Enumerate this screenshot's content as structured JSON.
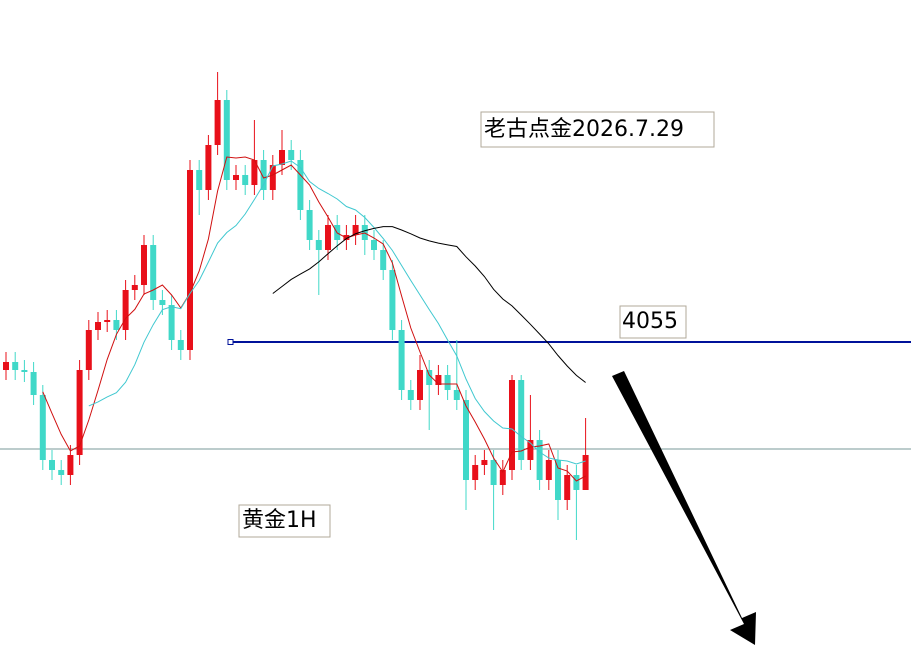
{
  "chart_data": {
    "type": "candlestick",
    "open": [
      4048,
      4050,
      4048,
      4047.5,
      4041.75,
      4025.5,
      4023,
      4021.75,
      4026.75,
      4048,
      4058,
      4060,
      4060.5,
      4058,
      4068,
      4069.25,
      4079.25,
      4065.5,
      4064.25,
      4055.5,
      4053,
      4098,
      4093,
      4104.25,
      4115.5,
      4095.5,
      4096.75,
      4094.25,
      4100.5,
      4093,
      4099.25,
      4103,
      4100.5,
      4088,
      4080.5,
      4078,
      4084.25,
      4080.5,
      4081.75,
      4084.25,
      4080.5,
      4078,
      4073,
      4058,
      4043,
      4040.5,
      4048,
      4044.25,
      4046.75,
      4043,
      4040.5,
      4020.5,
      4024.25,
      4025.5,
      4019.25,
      4023,
      4045.5,
      4025.5,
      4030.5,
      4020.5,
      4025.5,
      4015.5,
      4021.75,
      4018
    ],
    "high": [
      4052.5,
      4052.5,
      4050.5,
      4050,
      4044.25,
      4028,
      4025.5,
      4029.25,
      4050.5,
      4060.5,
      4062.5,
      4063,
      4063,
      4070.5,
      4071.75,
      4081.75,
      4081.75,
      4068,
      4066.75,
      4058,
      4100.5,
      4100.5,
      4106.75,
      4122.5,
      4118,
      4099.25,
      4099.25,
      4110.5,
      4103,
      4101.75,
      4108,
      4105.5,
      4103,
      4090.5,
      4083,
      4086.75,
      4086.75,
      4084.25,
      4086.75,
      4086.75,
      4083,
      4080.5,
      4075.5,
      4060.5,
      4045.5,
      4051.75,
      4050.5,
      4049.25,
      4049.25,
      4055.5,
      4043,
      4026.75,
      4028,
      4028,
      4025.5,
      4046.75,
      4046.75,
      4041.75,
      4033,
      4028,
      4028,
      4024.25,
      4024.25,
      4036
    ],
    "low": [
      4045.5,
      4045.5,
      4045,
      4039.25,
      4023,
      4020.5,
      4019.25,
      4019.25,
      4024.25,
      4045.5,
      4055.5,
      4057.5,
      4055.5,
      4055.5,
      4065.5,
      4066.75,
      4063,
      4061.75,
      4053,
      4050.5,
      4050.5,
      4086.75,
      4090.5,
      4101.75,
      4093,
      4093,
      4091.75,
      4091.75,
      4090.5,
      4090.5,
      4096.75,
      4098,
      4085.5,
      4078,
      4066.75,
      4075.5,
      4078,
      4078,
      4079.25,
      4076.75,
      4075.5,
      4070.5,
      4055.5,
      4040.5,
      4038,
      4038,
      4033,
      4041.75,
      4040.5,
      4038,
      4013,
      4018,
      4021.75,
      4008,
      4016.75,
      4020.5,
      4023,
      4023,
      4018,
      4018,
      4010.5,
      4013,
      4005.5,
      4019.25
    ],
    "close": [
      4050,
      4048,
      4047.5,
      4041.75,
      4025.5,
      4023,
      4021.75,
      4026.75,
      4048,
      4058,
      4060,
      4060.5,
      4058,
      4068,
      4069.25,
      4079.25,
      4065.5,
      4064.25,
      4055.5,
      4053,
      4098,
      4093,
      4104.25,
      4115.5,
      4095.5,
      4096.75,
      4094.25,
      4100.5,
      4093,
      4099.25,
      4103,
      4100.5,
      4088,
      4080.5,
      4078,
      4084.25,
      4080.5,
      4081.75,
      4084.25,
      4080.5,
      4078,
      4073,
      4058,
      4043,
      4040.5,
      4048,
      4044.25,
      4046.75,
      4043,
      4040.5,
      4020.5,
      4024.25,
      4025.5,
      4019.25,
      4023,
      4045.5,
      4025.5,
      4030.5,
      4020.5,
      4025.5,
      4015.5,
      4021.75,
      4018,
      4026.75
    ],
    "up_color": "#e8101a",
    "down_color": "#40d8c8",
    "moving_averages": [
      {
        "period": 5,
        "color": "#d01010"
      },
      {
        "period": 10,
        "color": "#40c8d0"
      },
      {
        "period": 30,
        "color": "#000000"
      }
    ],
    "ylim": [
      3979,
      4140.5
    ],
    "level": 4055,
    "level_color": "#00129a",
    "price_line": 4028.25,
    "price_line_color": "#7a9a9a",
    "title": "老古点金2026.7.29",
    "annotation": "黄金1H"
  }
}
